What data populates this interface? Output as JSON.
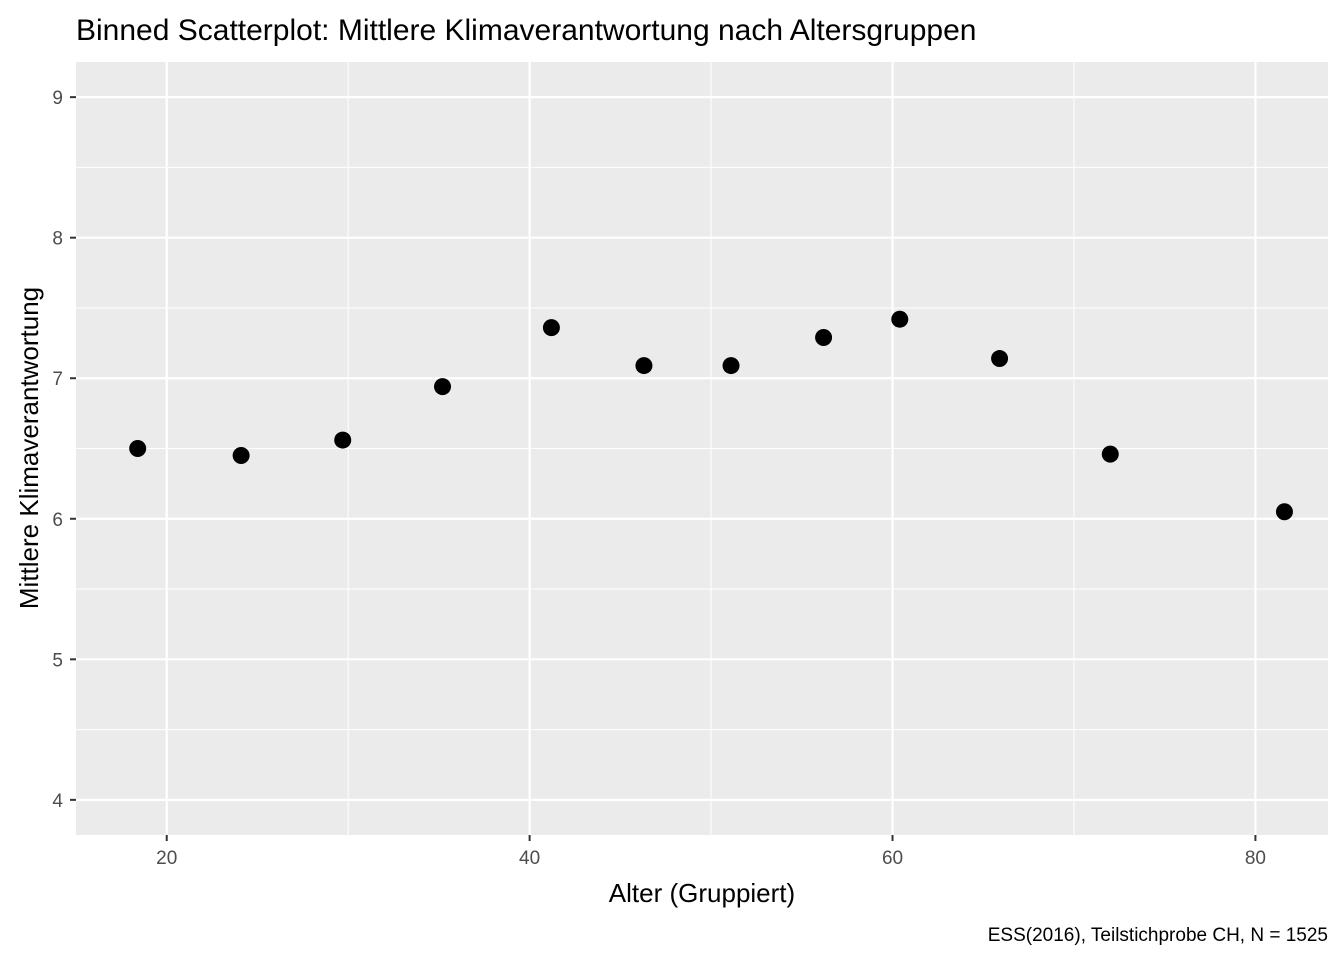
{
  "chart_data": {
    "type": "scatter",
    "title": "Binned Scatterplot: Mittlere Klimaverantwortung nach Altersgruppen",
    "xlabel": "Alter (Gruppiert)",
    "ylabel": "Mittlere Klimaverantwortung",
    "caption": "ESS(2016), Teilstichprobe CH, N = 1525",
    "xlim": [
      15,
      84
    ],
    "ylim": [
      3.75,
      9.25
    ],
    "x_ticks": [
      20,
      40,
      60,
      80
    ],
    "y_ticks": [
      4,
      5,
      6,
      7,
      8,
      9
    ],
    "grid": true,
    "legend": "none",
    "colors": {
      "panel_background": "#ebebeb",
      "grid_major": "#ffffff",
      "point": "#000000",
      "tick_text": "#4d4d4d"
    },
    "points": [
      {
        "x": 18.4,
        "y": 6.5
      },
      {
        "x": 24.1,
        "y": 6.45
      },
      {
        "x": 29.7,
        "y": 6.56
      },
      {
        "x": 35.2,
        "y": 6.94
      },
      {
        "x": 41.2,
        "y": 7.36
      },
      {
        "x": 46.3,
        "y": 7.09
      },
      {
        "x": 51.1,
        "y": 7.09
      },
      {
        "x": 56.2,
        "y": 7.29
      },
      {
        "x": 60.4,
        "y": 7.42
      },
      {
        "x": 65.9,
        "y": 7.14
      },
      {
        "x": 72.0,
        "y": 6.46
      },
      {
        "x": 81.6,
        "y": 6.05
      }
    ]
  }
}
